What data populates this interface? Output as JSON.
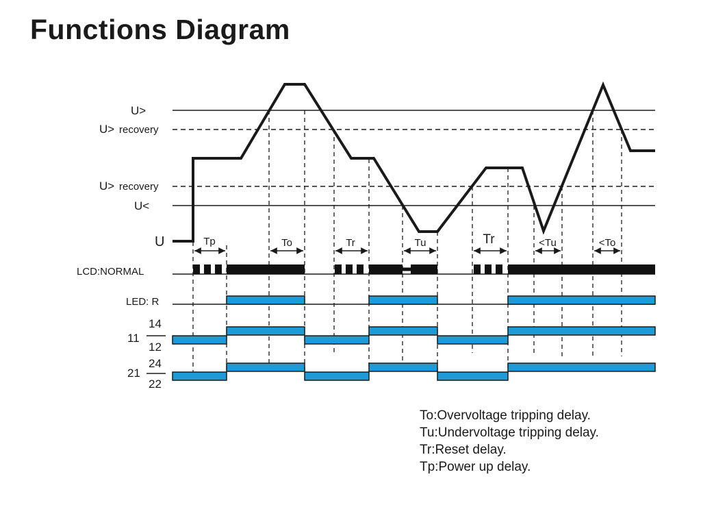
{
  "title": "Functions Diagram",
  "levels": {
    "u_over": "U>",
    "u_over_recovery_sym": "U>",
    "u_under_recovery_sym": "U>",
    "recovery_word": "recovery",
    "u_under": "U<",
    "u": "U"
  },
  "rows": {
    "lcd": "LCD:NORMAL",
    "led": "LED: R",
    "relay1_common": "11",
    "relay1_no": "14",
    "relay1_nc": "12",
    "relay2_common": "21",
    "relay2_no": "24",
    "relay2_nc": "22"
  },
  "delays": {
    "tp": "Tp",
    "to": "To",
    "tr1": "Tr",
    "tu": "Tu",
    "tr2": "Tr",
    "tu_less": "<Tu",
    "to_less": "<To"
  },
  "legend": [
    "To:Overvoltage tripping delay.",
    "Tu:Undervoltage tripping delay.",
    "Tr:Reset delay.",
    "Tp:Power up delay."
  ],
  "colors": {
    "relay_fill": "#1E9BD7",
    "line": "#1a1a1a"
  }
}
